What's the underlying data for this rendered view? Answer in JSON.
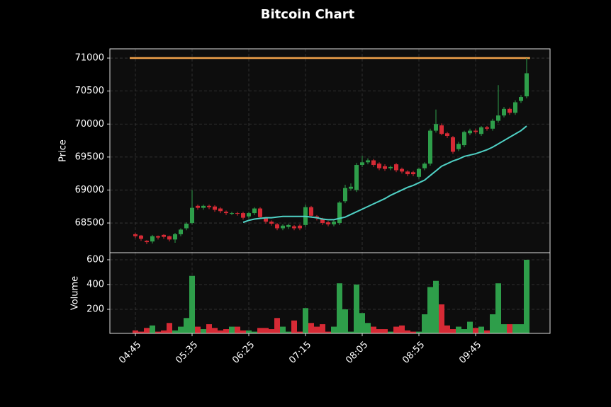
{
  "chart_data": {
    "type": "candlestick",
    "title": "Bitcoin Chart",
    "ylabel": "Price",
    "categories": [
      "04:45",
      null,
      null,
      null,
      null,
      null,
      null,
      null,
      null,
      null,
      "05:35",
      null,
      null,
      null,
      null,
      null,
      null,
      null,
      null,
      null,
      "06:25",
      null,
      null,
      null,
      null,
      null,
      null,
      null,
      null,
      null,
      "07:15",
      null,
      null,
      null,
      null,
      null,
      null,
      null,
      null,
      null,
      "08:05",
      null,
      null,
      null,
      null,
      null,
      null,
      null,
      null,
      null,
      "08:55",
      null,
      null,
      null,
      null,
      null,
      null,
      null,
      null,
      null,
      "09:45",
      null,
      null,
      null,
      null,
      null,
      null,
      null,
      null,
      null
    ],
    "open": [
      68330,
      68310,
      68230,
      68220,
      68300,
      68320,
      68300,
      68250,
      68330,
      68420,
      68500,
      68760,
      68730,
      68760,
      68750,
      68720,
      68670,
      68640,
      68650,
      68650,
      68600,
      68650,
      68720,
      68570,
      68520,
      68480,
      68420,
      68440,
      68450,
      68460,
      68470,
      68740,
      68600,
      68560,
      68510,
      68480,
      68500,
      68830,
      69020,
      69000,
      69380,
      69420,
      69450,
      69400,
      69360,
      69330,
      69390,
      69320,
      69280,
      69270,
      69200,
      69330,
      69400,
      69900,
      69980,
      69860,
      69800,
      69620,
      69680,
      69860,
      69900,
      69850,
      69950,
      69930,
      70050,
      70130,
      70230,
      70170,
      70350,
      70420
    ],
    "high": [
      68350,
      68320,
      68240,
      68320,
      68310,
      68330,
      68310,
      68350,
      68420,
      68510,
      69000,
      68780,
      68780,
      68780,
      68770,
      68740,
      68690,
      68670,
      68670,
      68670,
      68670,
      68740,
      68740,
      68590,
      68540,
      68500,
      68480,
      68490,
      68470,
      68480,
      68780,
      68760,
      68620,
      68580,
      68530,
      68550,
      68830,
      69080,
      69100,
      69410,
      69520,
      69480,
      69470,
      69420,
      69390,
      69370,
      69410,
      69340,
      69300,
      69290,
      69340,
      69420,
      69930,
      70220,
      70010,
      69880,
      69820,
      69730,
      69900,
      69930,
      69930,
      69970,
      69970,
      70080,
      70590,
      70260,
      70250,
      70360,
      70440,
      71000
    ],
    "low": [
      68270,
      68230,
      68180,
      68190,
      68250,
      68260,
      68220,
      68200,
      68300,
      68390,
      68480,
      68700,
      68700,
      68710,
      68670,
      68650,
      68620,
      68620,
      68610,
      68550,
      68570,
      68620,
      68560,
      68490,
      68460,
      68390,
      68390,
      68410,
      68390,
      68390,
      68440,
      68580,
      68540,
      68470,
      68450,
      68450,
      68470,
      68800,
      68990,
      68970,
      69350,
      69390,
      69350,
      69300,
      69290,
      69300,
      69270,
      69250,
      69210,
      69210,
      69170,
      69300,
      69370,
      69870,
      69830,
      69790,
      69550,
      69590,
      69650,
      69830,
      69850,
      69820,
      69900,
      69900,
      70020,
      70100,
      70140,
      70140,
      70320,
      70390
    ],
    "close": [
      68300,
      68260,
      68210,
      68300,
      68280,
      68290,
      68250,
      68330,
      68400,
      68490,
      68730,
      68730,
      68760,
      68740,
      68700,
      68680,
      68650,
      68650,
      68640,
      68580,
      68650,
      68720,
      68590,
      68520,
      68490,
      68420,
      68460,
      68470,
      68420,
      68420,
      68740,
      68610,
      68570,
      68500,
      68480,
      68520,
      68810,
      69030,
      69050,
      69380,
      69420,
      69450,
      69380,
      69330,
      69320,
      69350,
      69300,
      69280,
      69240,
      69240,
      69320,
      69400,
      69900,
      70000,
      69850,
      69820,
      69580,
      69700,
      69880,
      69900,
      69880,
      69950,
      69930,
      70050,
      70130,
      70230,
      70170,
      70330,
      70410,
      70770
    ],
    "up_color": "#2e9e4a",
    "down_color": "#d62a35",
    "ylim": [
      68050,
      71140
    ],
    "yticks": [
      68500,
      69000,
      69500,
      70000,
      70500,
      71000
    ],
    "grid": true,
    "moving_average": {
      "color": "#4fd1c5",
      "values": [
        null,
        null,
        null,
        null,
        null,
        null,
        null,
        null,
        null,
        null,
        null,
        null,
        null,
        null,
        null,
        null,
        null,
        null,
        null,
        68510,
        68540,
        68560,
        68570,
        68580,
        68580,
        68590,
        68600,
        68600,
        68600,
        68600,
        68600,
        68590,
        68580,
        68560,
        68550,
        68550,
        68570,
        68590,
        68630,
        68670,
        68710,
        68750,
        68790,
        68830,
        68870,
        68920,
        68960,
        69000,
        69040,
        69070,
        69110,
        69150,
        69220,
        69290,
        69360,
        69400,
        69440,
        69470,
        69510,
        69530,
        69550,
        69580,
        69610,
        69650,
        69700,
        69750,
        69800,
        69850,
        69900,
        69970
      ]
    },
    "hline": {
      "value": 71000,
      "color": "#f0a24a"
    },
    "volume": {
      "ylabel": "Volume",
      "values": [
        30,
        20,
        50,
        70,
        20,
        30,
        90,
        30,
        60,
        130,
        470,
        60,
        40,
        80,
        50,
        30,
        40,
        60,
        60,
        30,
        30,
        20,
        50,
        50,
        40,
        130,
        60,
        20,
        110,
        20,
        210,
        90,
        60,
        80,
        20,
        60,
        410,
        200,
        20,
        400,
        170,
        90,
        60,
        40,
        40,
        20,
        60,
        70,
        30,
        20,
        20,
        160,
        380,
        430,
        240,
        70,
        40,
        60,
        40,
        100,
        50,
        60,
        30,
        160,
        410,
        80,
        80,
        80,
        80,
        600
      ],
      "ylim": [
        6,
        657
      ],
      "yticks": [
        200,
        400,
        600
      ]
    }
  }
}
